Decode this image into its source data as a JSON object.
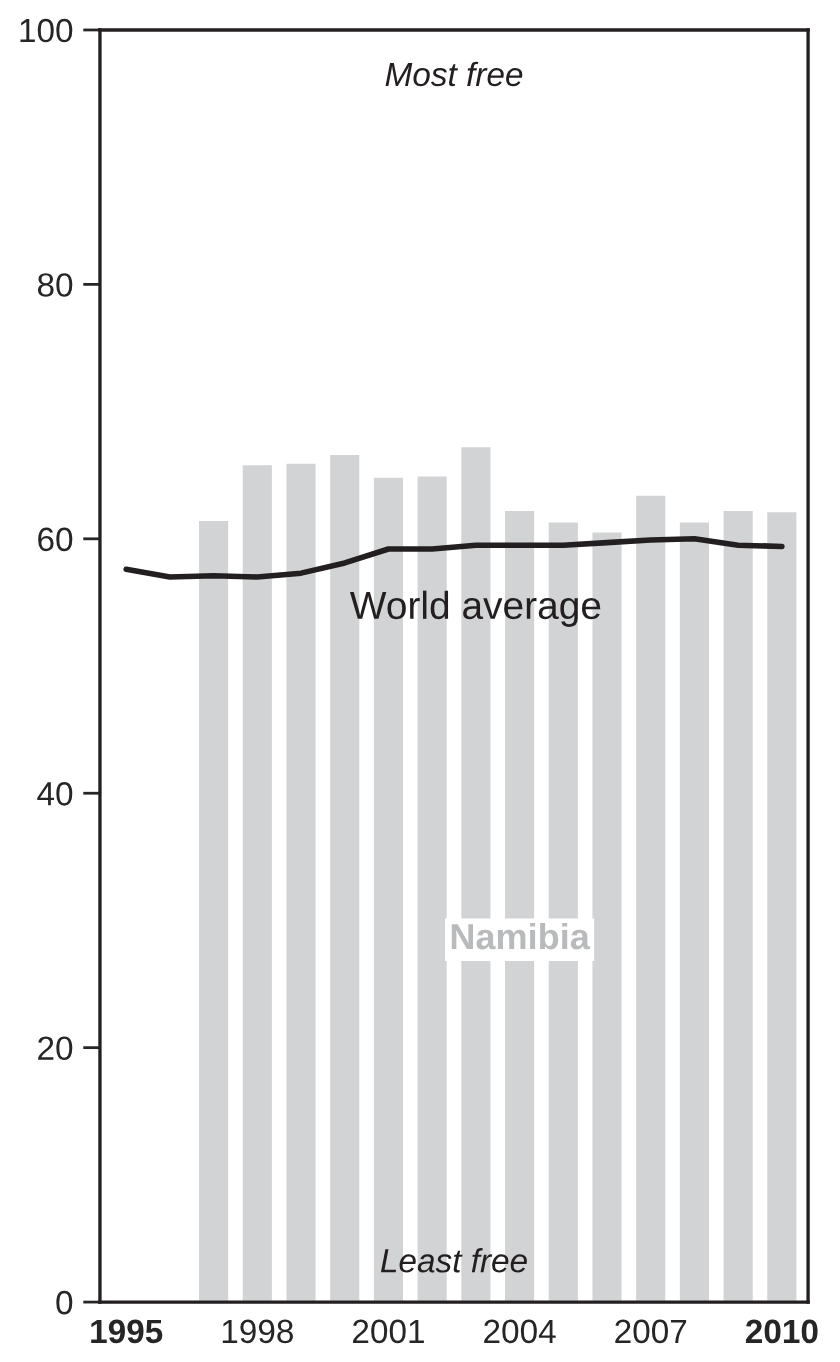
{
  "chart_data": {
    "type": "bar",
    "legend": false,
    "grid": false,
    "series": [
      {
        "name": "Namibia",
        "color": "#d1d3d4",
        "x": [
          1997,
          1998,
          1999,
          2000,
          2001,
          2002,
          2003,
          2004,
          2005,
          2006,
          2007,
          2008,
          2009,
          2010
        ],
        "values": [
          61.5,
          65.9,
          66.0,
          66.7,
          64.9,
          65.0,
          67.3,
          62.3,
          61.4,
          60.6,
          63.5,
          61.4,
          62.3,
          62.2
        ]
      },
      {
        "name": "World average",
        "type": "line",
        "color": "#231f20",
        "x": [
          1995,
          1996,
          1997,
          1998,
          1999,
          2000,
          2001,
          2002,
          2003,
          2004,
          2005,
          2006,
          2007,
          2008,
          2009,
          2010
        ],
        "values": [
          57.6,
          57.0,
          57.1,
          57.0,
          57.3,
          58.1,
          59.2,
          59.2,
          59.5,
          59.5,
          59.5,
          59.7,
          59.9,
          60.0,
          59.5,
          59.4
        ]
      }
    ],
    "xlim": [
      1994.4,
      2010.6
    ],
    "xticks": [
      1995,
      1998,
      2001,
      2004,
      2007,
      2010
    ],
    "ylim": [
      0,
      100
    ],
    "yticks": [
      0,
      20,
      40,
      60,
      80,
      100
    ],
    "annotations": [
      "Most free",
      "Least free"
    ]
  }
}
